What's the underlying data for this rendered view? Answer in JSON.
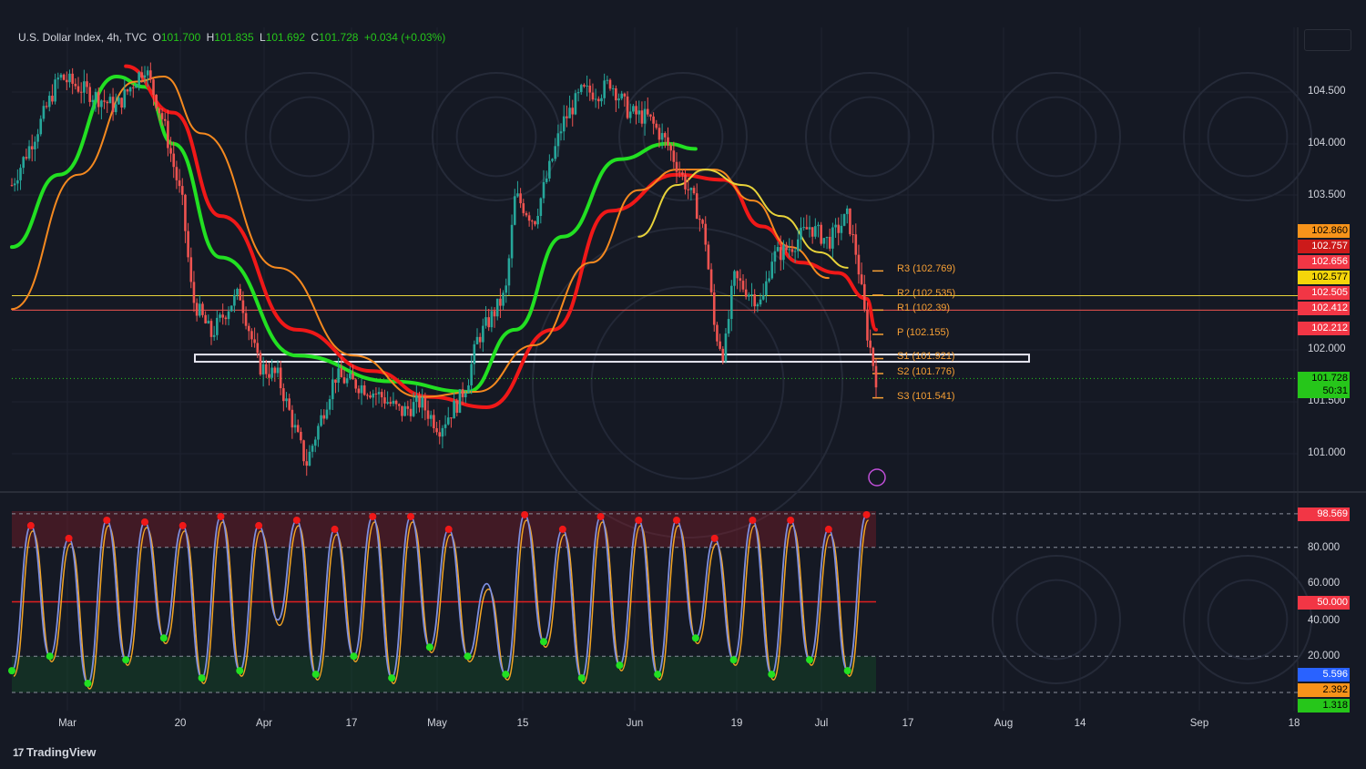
{
  "header": {
    "symbol": "U.S. Dollar Index, 4h, TVC",
    "open_label": "O",
    "open": "101.700",
    "high_label": "H",
    "high": "101.835",
    "low_label": "L",
    "low": "101.692",
    "close_label": "C",
    "close": "101.728",
    "change": "+0.034 (+0.03%)"
  },
  "brand": "TradingView",
  "colors": {
    "background": "#151924",
    "bull": "#26a69a",
    "bear": "#ef5350",
    "ema_green": "#22e022",
    "ema_red": "#f01818",
    "orange_curve": "#f5891f",
    "yellow_curve": "#e8d33a",
    "osc_blue": "#7e8fe0",
    "osc_orange": "#f5a623"
  },
  "price_axis": [
    "104.500",
    "104.000",
    "103.500",
    "102.000",
    "101.500",
    "101.000"
  ],
  "price_labels": [
    {
      "value": "102.860",
      "bg": "#f7931a",
      "fg": "#000000"
    },
    {
      "value": "102.757",
      "bg": "#cc1a1a",
      "fg": "#ffffff"
    },
    {
      "value": "102.656",
      "bg": "#f23645",
      "fg": "#ffffff"
    },
    {
      "value": "102.577",
      "bg": "#f5d50a",
      "fg": "#000000"
    },
    {
      "value": "102.505",
      "bg": "#f23645",
      "fg": "#ffffff"
    },
    {
      "value": "102.412",
      "bg": "#f23645",
      "fg": "#ffffff"
    },
    {
      "value": "102.212",
      "bg": "#f23645",
      "fg": "#ffffff"
    },
    {
      "value": "101.728",
      "bg": "#26c61a",
      "fg": "#000000"
    },
    {
      "value": "50:31",
      "bg": "#26c61a",
      "fg": "#000000"
    }
  ],
  "pivots": [
    {
      "label": "R3 (102.769)"
    },
    {
      "label": "R2 (102.535)"
    },
    {
      "label": "R1 (102.39)"
    },
    {
      "label": "P (102.155)"
    },
    {
      "label": "S1 (101.921)"
    },
    {
      "label": "S2 (101.776)"
    },
    {
      "label": "S3 (101.541)"
    }
  ],
  "osc_axis": [
    "80.000",
    "60.000",
    "40.000",
    "20.000"
  ],
  "osc_labels": [
    {
      "value": "98.569",
      "bg": "#f23645",
      "fg": "#ffffff"
    },
    {
      "value": "50.000",
      "bg": "#f23645",
      "fg": "#ffffff"
    },
    {
      "value": "5.596",
      "bg": "#2962ff",
      "fg": "#ffffff"
    },
    {
      "value": "2.392",
      "bg": "#f7931a",
      "fg": "#000000"
    },
    {
      "value": "1.318",
      "bg": "#26c61a",
      "fg": "#000000"
    }
  ],
  "time_axis": [
    "Mar",
    "20",
    "Apr",
    "17",
    "May",
    "15",
    "Jun",
    "19",
    "Jul",
    "17",
    "Aug",
    "14",
    "Sep",
    "18"
  ],
  "chart_data": [
    {
      "type": "candlestick",
      "title": "U.S. Dollar Index, 4h, TVC",
      "x": [
        "Mar",
        "20",
        "Apr",
        "17",
        "May",
        "15",
        "Jun",
        "19",
        "Jul",
        "17",
        "Aug",
        "14",
        "Sep",
        "18"
      ],
      "path_x": [
        0,
        3,
        5,
        8,
        11,
        14,
        16,
        18,
        19,
        21,
        23,
        24,
        26,
        28,
        31,
        34,
        37,
        39,
        41,
        43,
        45,
        47,
        48,
        49,
        52,
        53,
        55,
        58,
        60,
        62,
        63,
        65,
        67,
        69,
        71,
        72,
        73,
        74,
        75,
        76,
        79,
        80,
        82,
        84,
        86,
        88,
        89,
        90,
        91
      ],
      "path_close": [
        103.6,
        104.2,
        104.65,
        104.5,
        104.35,
        104.75,
        104.2,
        103.4,
        102.5,
        102.15,
        102.45,
        102.55,
        101.85,
        101.75,
        100.9,
        101.75,
        101.65,
        101.55,
        101.4,
        101.5,
        101.25,
        101.5,
        101.7,
        102.1,
        102.55,
        103.5,
        103.25,
        104.2,
        104.5,
        104.5,
        104.6,
        104.3,
        104.25,
        104.0,
        103.6,
        103.4,
        103.1,
        102.2,
        101.95,
        102.7,
        102.45,
        102.9,
        103.0,
        103.2,
        103.05,
        103.3,
        102.9,
        102.2,
        101.73
      ],
      "ylim": [
        100.77,
        104.93
      ],
      "horizontal_lines": {
        "yellow": 102.53,
        "red": 102.39,
        "green_dotted": 101.728
      },
      "support_box": [
        101.89,
        101.96
      ],
      "pivots": {
        "R3": 102.769,
        "R2": 102.535,
        "R1": 102.39,
        "P": 102.155,
        "S1": 101.921,
        "S2": 101.776,
        "S3": 101.541
      },
      "emas": [
        {
          "color": "#22e022",
          "points": [
            [
              0,
              103.0
            ],
            [
              5,
              103.7
            ],
            [
              11,
              104.65
            ],
            [
              14,
              104.55
            ],
            [
              17,
              104.0
            ],
            [
              22,
              102.9
            ],
            [
              30,
              101.95
            ],
            [
              40,
              101.7
            ],
            [
              48,
              101.6
            ],
            [
              53,
              102.2
            ],
            [
              58,
              103.1
            ],
            [
              64,
              103.85
            ],
            [
              69,
              104.0
            ],
            [
              72,
              103.95
            ]
          ]
        },
        {
          "color": "#f01818",
          "points": [
            [
              12,
              104.75
            ],
            [
              17,
              104.3
            ],
            [
              22,
              103.3
            ],
            [
              30,
              102.2
            ],
            [
              38,
              101.8
            ],
            [
              44,
              101.55
            ],
            [
              50,
              101.45
            ],
            [
              57,
              102.2
            ],
            [
              63,
              103.35
            ],
            [
              70,
              103.7
            ],
            [
              75,
              103.65
            ],
            [
              79,
              103.2
            ],
            [
              83,
              102.85
            ],
            [
              87,
              102.75
            ],
            [
              90,
              102.5
            ],
            [
              91,
              102.2
            ]
          ]
        },
        {
          "color": "#f5891f",
          "points": [
            [
              0,
              102.4
            ],
            [
              7,
              103.7
            ],
            [
              13,
              104.6
            ],
            [
              16,
              104.65
            ],
            [
              20,
              104.1
            ],
            [
              28,
              102.8
            ],
            [
              36,
              101.95
            ],
            [
              43,
              101.55
            ],
            [
              49,
              101.6
            ],
            [
              55,
              102.05
            ],
            [
              61,
              102.85
            ],
            [
              66,
              103.55
            ],
            [
              70,
              103.75
            ],
            [
              74,
              103.75
            ],
            [
              78,
              103.45
            ],
            [
              82,
              103.0
            ],
            [
              86,
              102.7
            ]
          ]
        },
        {
          "color": "#e8d33a",
          "points": [
            [
              66,
              103.1
            ],
            [
              70,
              103.6
            ],
            [
              73,
              103.75
            ],
            [
              77,
              103.6
            ],
            [
              81,
              103.3
            ],
            [
              85,
              102.95
            ],
            [
              88,
              102.8
            ]
          ]
        }
      ]
    },
    {
      "type": "line",
      "title": "",
      "x": [
        0,
        2,
        4,
        6,
        8,
        10,
        12,
        14,
        16,
        18,
        20,
        22,
        24,
        26,
        28,
        30,
        32,
        34,
        36,
        38,
        40,
        42,
        44,
        46,
        48,
        50,
        52,
        54,
        56,
        58,
        60,
        62,
        64,
        66,
        68,
        70,
        72,
        74,
        76,
        78,
        80,
        82,
        84,
        86,
        88,
        90
      ],
      "series": [
        {
          "name": "",
          "color": "#7e8fe0",
          "values": [
            12,
            92,
            20,
            85,
            5,
            95,
            18,
            94,
            30,
            92,
            8,
            97,
            12,
            92,
            40,
            95,
            10,
            90,
            20,
            97,
            8,
            97,
            25,
            90,
            20,
            60,
            10,
            98,
            28,
            90,
            8,
            97,
            15,
            95,
            10,
            95,
            30,
            85,
            18,
            95,
            10,
            95,
            18,
            90,
            12,
            98
          ]
        }
      ],
      "ylim": [
        -2,
        102
      ],
      "levels": {
        "overbought": 80,
        "mid": 50,
        "oversold": 20,
        "upper": 98.569
      }
    }
  ]
}
